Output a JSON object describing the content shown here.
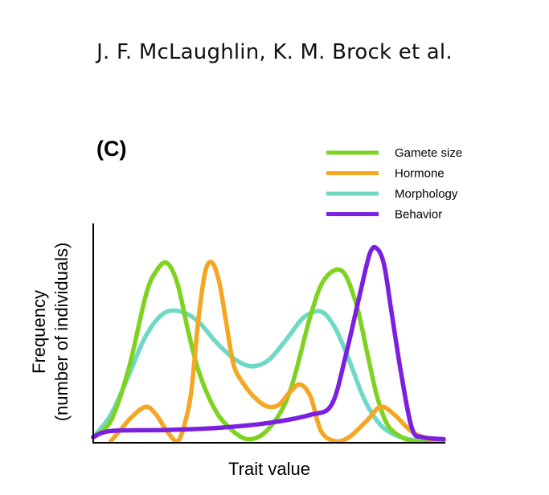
{
  "header": {
    "authors": "J. F. McLaughlin, K. M. Brock et al."
  },
  "panel": {
    "label": "(C)"
  },
  "chart_data": {
    "type": "line",
    "xlabel": "Trait value",
    "ylabel_line1": "Frequency",
    "ylabel_line2": "(number of individuals)",
    "grid": false,
    "legend_position": "top-right",
    "x_ticks": "none",
    "y_ticks": "none",
    "xlim": [
      0,
      100
    ],
    "ylim": [
      0,
      100
    ],
    "series": [
      {
        "name": "Gamete size",
        "color": "#7ed321",
        "points": [
          [
            0,
            2
          ],
          [
            5,
            10
          ],
          [
            10,
            35
          ],
          [
            15,
            72
          ],
          [
            18,
            84
          ],
          [
            21,
            88
          ],
          [
            24,
            78
          ],
          [
            27,
            55
          ],
          [
            30,
            35
          ],
          [
            34,
            18
          ],
          [
            38,
            8
          ],
          [
            44,
            1
          ],
          [
            50,
            6
          ],
          [
            56,
            24
          ],
          [
            62,
            62
          ],
          [
            66,
            80
          ],
          [
            71,
            84
          ],
          [
            75,
            68
          ],
          [
            78,
            45
          ],
          [
            81,
            22
          ],
          [
            84,
            8
          ],
          [
            88,
            2
          ],
          [
            92,
            0
          ],
          [
            100,
            0
          ]
        ]
      },
      {
        "name": "Hormone",
        "color": "#f5a623",
        "points": [
          [
            5,
            0
          ],
          [
            8,
            6
          ],
          [
            11,
            12
          ],
          [
            15,
            17
          ],
          [
            18,
            13
          ],
          [
            21,
            5
          ],
          [
            24,
            0
          ],
          [
            26,
            8
          ],
          [
            28,
            25
          ],
          [
            30,
            60
          ],
          [
            32,
            84
          ],
          [
            34,
            88
          ],
          [
            36,
            78
          ],
          [
            38,
            58
          ],
          [
            40,
            38
          ],
          [
            43,
            28
          ],
          [
            47,
            20
          ],
          [
            50,
            17
          ],
          [
            53,
            18
          ],
          [
            56,
            24
          ],
          [
            59,
            28
          ],
          [
            62,
            22
          ],
          [
            65,
            5
          ],
          [
            69,
            0
          ],
          [
            73,
            2
          ],
          [
            78,
            10
          ],
          [
            82,
            17
          ],
          [
            86,
            13
          ],
          [
            90,
            6
          ],
          [
            94,
            2
          ],
          [
            100,
            0
          ]
        ]
      },
      {
        "name": "Morphology",
        "color": "#6fd9c5",
        "points": [
          [
            0,
            2
          ],
          [
            5,
            13
          ],
          [
            10,
            32
          ],
          [
            15,
            52
          ],
          [
            20,
            63
          ],
          [
            25,
            64
          ],
          [
            30,
            59
          ],
          [
            35,
            49
          ],
          [
            40,
            41
          ],
          [
            45,
            37
          ],
          [
            50,
            40
          ],
          [
            55,
            50
          ],
          [
            60,
            61
          ],
          [
            65,
            64
          ],
          [
            69,
            56
          ],
          [
            73,
            40
          ],
          [
            77,
            22
          ],
          [
            81,
            10
          ],
          [
            85,
            4
          ],
          [
            90,
            1
          ],
          [
            95,
            0
          ],
          [
            100,
            0
          ]
        ]
      },
      {
        "name": "Behavior",
        "color": "#7b1fe0",
        "points": [
          [
            0,
            2
          ],
          [
            5,
            5
          ],
          [
            20,
            5.5
          ],
          [
            35,
            6.5
          ],
          [
            50,
            9
          ],
          [
            62,
            13
          ],
          [
            68,
            18
          ],
          [
            72,
            42
          ],
          [
            76,
            72
          ],
          [
            79,
            93
          ],
          [
            81,
            95
          ],
          [
            83,
            87
          ],
          [
            85,
            65
          ],
          [
            88,
            32
          ],
          [
            91,
            6
          ],
          [
            94,
            2
          ],
          [
            100,
            1
          ]
        ]
      }
    ]
  }
}
